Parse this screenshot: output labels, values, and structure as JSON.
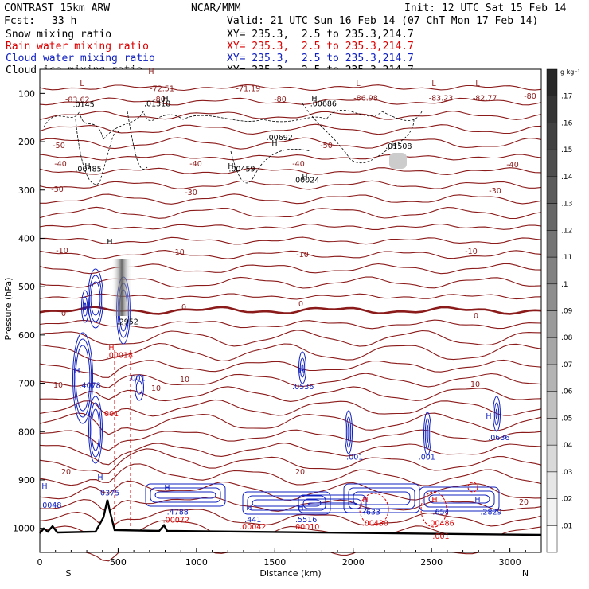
{
  "header": {
    "model": "CONTRAST 15km ARW",
    "org": "NCAR/MMM",
    "init": "Init: 12 UTC Sat 15 Feb 14",
    "fcst_label": "Fcst:",
    "fcst_value": "33 h",
    "valid": "Valid: 21 UTC Sun 16 Feb 14 (07 ChT Mon 17 Feb 14)"
  },
  "fields": [
    {
      "label": "Snow mixing ratio",
      "xy": "XY= 235.3,  2.5 to 235.3,214.7",
      "color": "#000000"
    },
    {
      "label": "Rain water mixing ratio",
      "xy": "XY= 235.3,  2.5 to 235.3,214.7",
      "color": "#dd0000"
    },
    {
      "label": "Cloud water mixing ratio",
      "xy": "XY= 235.3,  2.5 to 235.3,214.7",
      "color": "#1020c0"
    },
    {
      "label": "Cloud ice mixing ratio",
      "xy": "XY= 235.3,  2.5 to 235.3,214.7",
      "color": "#000000"
    }
  ],
  "colorbar": {
    "unit": "g kg⁻¹",
    "levels": [
      ".01",
      ".02",
      ".03",
      ".04",
      ".05",
      ".06",
      ".07",
      ".08",
      ".09",
      ".1",
      ".11",
      ".12",
      ".13",
      ".14",
      ".15",
      ".16",
      ".17"
    ]
  },
  "chart_data": {
    "type": "contour",
    "xlabel": "Distance (km)",
    "ylabel": "Pressure (hPa)",
    "xlim": [
      0,
      3200
    ],
    "ylim": [
      1050,
      50
    ],
    "x_ticks": [
      "0",
      "500",
      "1000",
      "1500",
      "2000",
      "2500",
      "3000"
    ],
    "y_ticks": [
      "100",
      "200",
      "300",
      "400",
      "500",
      "600",
      "700",
      "800",
      "900",
      "1000"
    ],
    "x_end_labels": [
      "S",
      "N"
    ],
    "temperature_contour_labels": [
      "-80",
      "-50",
      "-40",
      "-30",
      "-10",
      "0",
      "10",
      "20"
    ],
    "annotations": [
      {
        "text": "-72.51",
        "x": 780,
        "p": 95,
        "color": "#8b1a1a"
      },
      {
        "text": "-71.19",
        "x": 1330,
        "p": 95,
        "color": "#8b1a1a"
      },
      {
        "text": "-83.62",
        "x": 240,
        "p": 118,
        "color": "#8b1a1a"
      },
      {
        "text": "-86.98",
        "x": 2080,
        "p": 115,
        "color": "#8b1a1a"
      },
      {
        "text": "-83.23",
        "x": 2560,
        "p": 115,
        "color": "#8b1a1a"
      },
      {
        "text": "-82.77",
        "x": 2840,
        "p": 115,
        "color": "#8b1a1a"
      },
      {
        "text": ".0145",
        "x": 280,
        "p": 128,
        "color": "#000000"
      },
      {
        "text": ".01318",
        "x": 750,
        "p": 127,
        "color": "#000000"
      },
      {
        "text": ".00686",
        "x": 1810,
        "p": 127,
        "color": "#000000"
      },
      {
        "text": ".00692",
        "x": 1530,
        "p": 197,
        "color": "#000000"
      },
      {
        "text": ".01508",
        "x": 2290,
        "p": 215,
        "color": "#000000"
      },
      {
        "text": ".00485",
        "x": 310,
        "p": 262,
        "color": "#000000"
      },
      {
        "text": ".00459",
        "x": 1290,
        "p": 262,
        "color": "#000000"
      },
      {
        "text": ".00024",
        "x": 1700,
        "p": 285,
        "color": "#000000"
      },
      {
        "text": ".2952",
        "x": 560,
        "p": 578,
        "color": "#000000"
      },
      {
        "text": ".00018",
        "x": 510,
        "p": 647,
        "color": "#dd0000"
      },
      {
        "text": ".4078",
        "x": 320,
        "p": 710,
        "color": "#1020c0"
      },
      {
        "text": ".001",
        "x": 620,
        "p": 695,
        "color": "#1020c0"
      },
      {
        "text": ".0536",
        "x": 1680,
        "p": 712,
        "color": "#1020c0"
      },
      {
        "text": ".001",
        "x": 450,
        "p": 768,
        "color": "#dd0000"
      },
      {
        "text": ".0636",
        "x": 2930,
        "p": 818,
        "color": "#1020c0"
      },
      {
        "text": ".001",
        "x": 2010,
        "p": 858,
        "color": "#1020c0"
      },
      {
        "text": ".001",
        "x": 2470,
        "p": 858,
        "color": "#1020c0"
      },
      {
        "text": ".0048",
        "x": 70,
        "p": 958,
        "color": "#1020c0"
      },
      {
        "text": ".0375",
        "x": 440,
        "p": 932,
        "color": "#1020c0"
      },
      {
        "text": ".4788",
        "x": 880,
        "p": 972,
        "color": "#1020c0"
      },
      {
        "text": ".00072",
        "x": 870,
        "p": 988,
        "color": "#dd0000"
      },
      {
        "text": ".441",
        "x": 1360,
        "p": 987,
        "color": "#1020c0"
      },
      {
        "text": ".00042",
        "x": 1360,
        "p": 1002,
        "color": "#dd0000"
      },
      {
        "text": ".5516",
        "x": 1700,
        "p": 987,
        "color": "#1020c0"
      },
      {
        "text": ".00010",
        "x": 1700,
        "p": 1002,
        "color": "#dd0000"
      },
      {
        "text": ".633",
        "x": 2120,
        "p": 972,
        "color": "#1020c0"
      },
      {
        "text": ".00430",
        "x": 2140,
        "p": 995,
        "color": "#dd0000"
      },
      {
        "text": ".654",
        "x": 2560,
        "p": 972,
        "color": "#1020c0"
      },
      {
        "text": ".00486",
        "x": 2560,
        "p": 995,
        "color": "#dd0000"
      },
      {
        "text": ".2829",
        "x": 2880,
        "p": 972,
        "color": "#1020c0"
      },
      {
        "text": ".001",
        "x": 2560,
        "p": 1022,
        "color": "#dd0000"
      }
    ]
  }
}
